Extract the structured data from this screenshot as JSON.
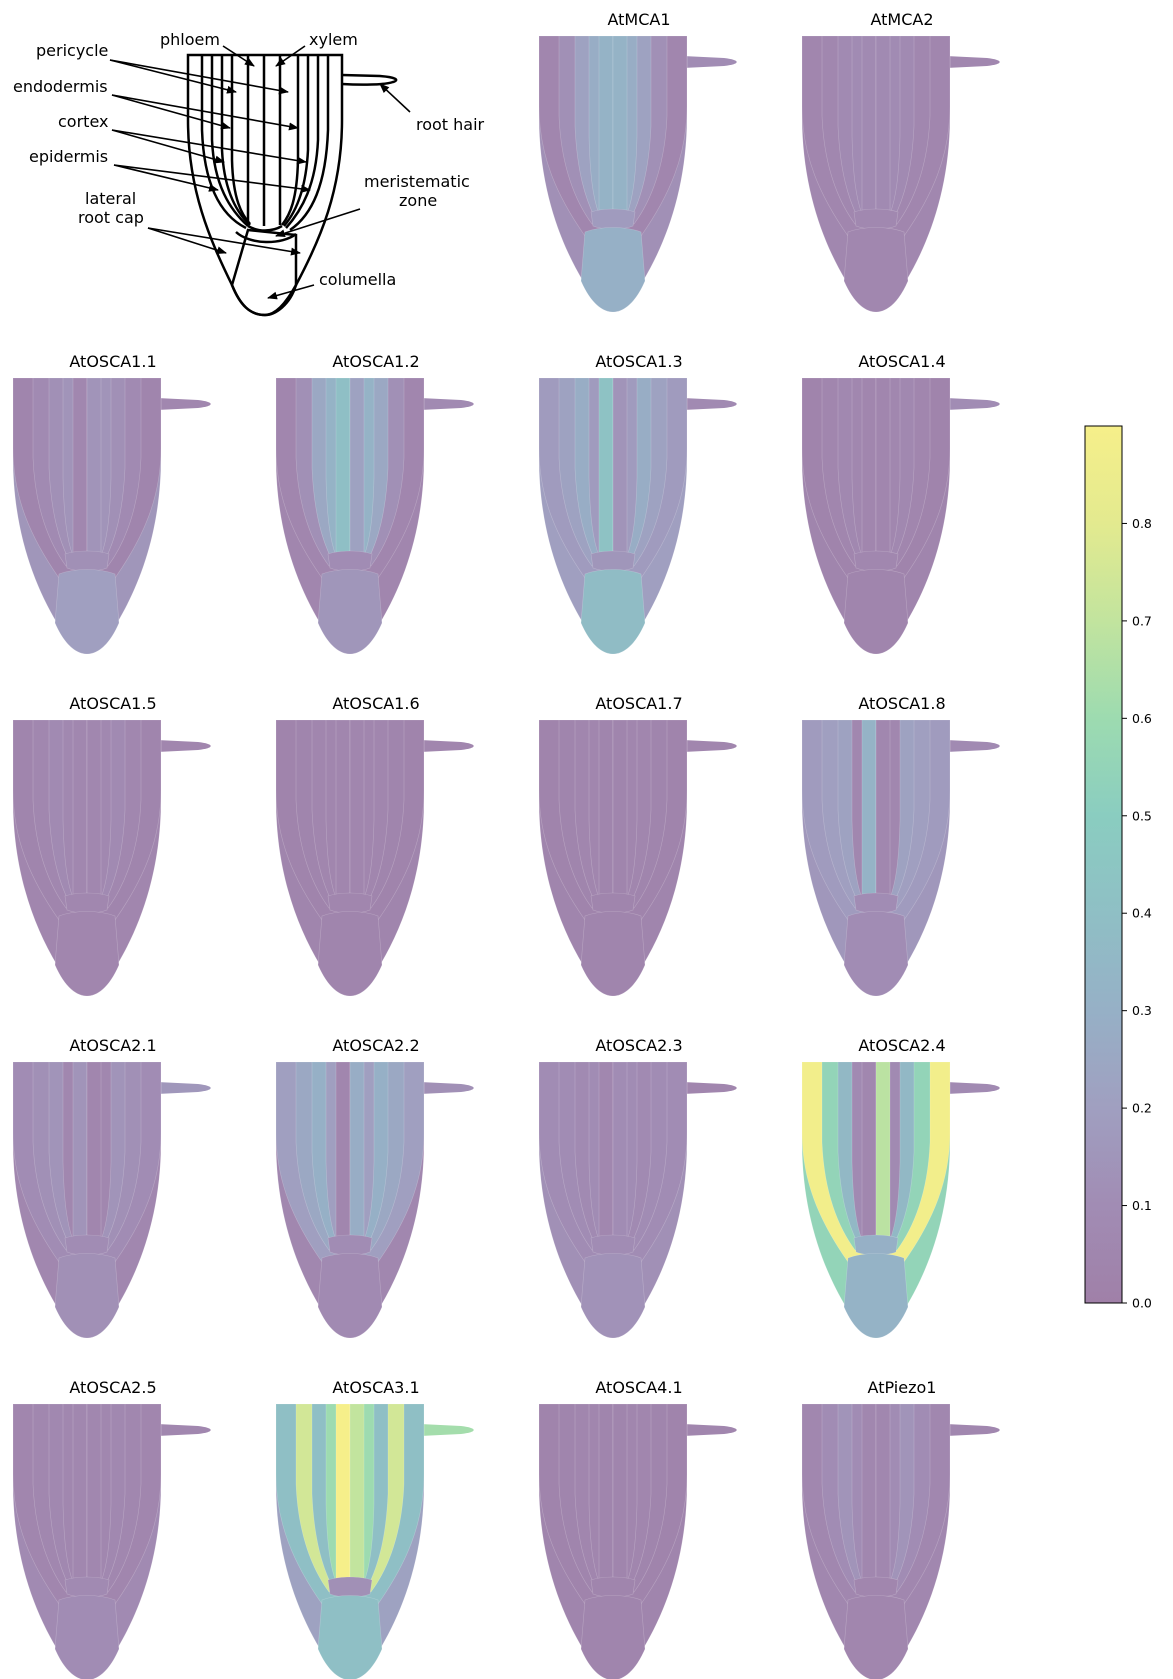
{
  "schematic": {
    "labels": {
      "pericycle": "pericycle",
      "endodermis": "endodermis",
      "cortex": "cortex",
      "epidermis": "epidermis",
      "lateral_root_cap_1": "lateral",
      "lateral_root_cap_2": "root cap",
      "phloem": "phloem",
      "xylem": "xylem",
      "root_hair": "root hair",
      "meristematic_1": "meristematic",
      "meristematic_2": "zone",
      "columella": "columella"
    }
  },
  "colorbar": {
    "ticks": [
      "0.0",
      "0.1",
      "0.2",
      "0.3",
      "0.4",
      "0.5",
      "0.6",
      "0.7",
      "0.8"
    ],
    "range": [
      0,
      0.9
    ],
    "colormap": "viridis",
    "alpha": 0.55
  },
  "tissues_order": [
    "epidermis",
    "cortex",
    "endodermis",
    "pericycle",
    "phloem",
    "xylem",
    "lateral_root_cap",
    "meristematic_zone",
    "columella",
    "root_hair"
  ],
  "panels": [
    {
      "title": "AtMCA1",
      "values": {
        "epidermis": 0.05,
        "cortex": 0.12,
        "endodermis": 0.22,
        "pericycle": 0.28,
        "phloem": 0.32,
        "xylem": 0.32,
        "lateral_root_cap": 0.12,
        "meristematic_zone": 0.18,
        "columella": 0.3,
        "root_hair": 0.1
      }
    },
    {
      "title": "AtMCA2",
      "values": {
        "epidermis": 0.05,
        "cortex": 0.06,
        "endodermis": 0.08,
        "pericycle": 0.09,
        "phloem": 0.08,
        "xylem": 0.08,
        "lateral_root_cap": 0.06,
        "meristematic_zone": 0.07,
        "columella": 0.06,
        "root_hair": 0.06
      }
    },
    {
      "title": "AtOSCA1.1",
      "values": {
        "epidermis": 0.04,
        "cortex": 0.08,
        "endodermis": 0.12,
        "pericycle": 0.14,
        "phloem": 0.06,
        "xylem": 0.14,
        "lateral_root_cap": 0.15,
        "meristematic_zone": 0.12,
        "columella": 0.2,
        "root_hair": 0.06
      }
    },
    {
      "title": "AtOSCA1.2",
      "values": {
        "epidermis": 0.05,
        "cortex": 0.12,
        "endodermis": 0.25,
        "pericycle": 0.32,
        "phloem": 0.4,
        "xylem": 0.22,
        "lateral_root_cap": 0.05,
        "meristematic_zone": 0.1,
        "columella": 0.15,
        "root_hair": 0.08
      }
    },
    {
      "title": "AtOSCA1.3",
      "values": {
        "epidermis": 0.18,
        "cortex": 0.22,
        "endodermis": 0.28,
        "pericycle": 0.18,
        "phloem": 0.42,
        "xylem": 0.14,
        "lateral_root_cap": 0.2,
        "meristematic_zone": 0.15,
        "columella": 0.38,
        "root_hair": 0.08
      }
    },
    {
      "title": "AtOSCA1.4",
      "values": {
        "epidermis": 0.03,
        "cortex": 0.05,
        "endodermis": 0.07,
        "pericycle": 0.06,
        "phloem": 0.05,
        "xylem": 0.05,
        "lateral_root_cap": 0.04,
        "meristematic_zone": 0.06,
        "columella": 0.04,
        "root_hair": 0.1
      }
    },
    {
      "title": "AtOSCA1.5",
      "values": {
        "epidermis": 0.04,
        "cortex": 0.06,
        "endodermis": 0.08,
        "pericycle": 0.07,
        "phloem": 0.06,
        "xylem": 0.06,
        "lateral_root_cap": 0.05,
        "meristematic_zone": 0.06,
        "columella": 0.05,
        "root_hair": 0.05
      }
    },
    {
      "title": "AtOSCA1.6",
      "values": {
        "epidermis": 0.03,
        "cortex": 0.04,
        "endodermis": 0.05,
        "pericycle": 0.05,
        "phloem": 0.05,
        "xylem": 0.05,
        "lateral_root_cap": 0.04,
        "meristematic_zone": 0.05,
        "columella": 0.04,
        "root_hair": 0.05
      }
    },
    {
      "title": "AtOSCA1.7",
      "values": {
        "epidermis": 0.03,
        "cortex": 0.04,
        "endodermis": 0.05,
        "pericycle": 0.05,
        "phloem": 0.04,
        "xylem": 0.04,
        "lateral_root_cap": 0.04,
        "meristematic_zone": 0.04,
        "columella": 0.04,
        "root_hair": 0.05
      }
    },
    {
      "title": "AtOSCA1.8",
      "values": {
        "epidermis": 0.18,
        "cortex": 0.2,
        "endodermis": 0.22,
        "pericycle": 0.06,
        "phloem": 0.32,
        "xylem": 0.06,
        "lateral_root_cap": 0.16,
        "meristematic_zone": 0.1,
        "columella": 0.1,
        "root_hair": 0.08
      }
    },
    {
      "title": "AtOSCA2.1",
      "values": {
        "epidermis": 0.1,
        "cortex": 0.12,
        "endodermis": 0.14,
        "pericycle": 0.06,
        "phloem": 0.14,
        "xylem": 0.05,
        "lateral_root_cap": 0.06,
        "meristematic_zone": 0.1,
        "columella": 0.12,
        "root_hair": 0.16
      }
    },
    {
      "title": "AtOSCA2.2",
      "values": {
        "epidermis": 0.2,
        "cortex": 0.25,
        "endodermis": 0.3,
        "pericycle": 0.2,
        "phloem": 0.05,
        "xylem": 0.28,
        "lateral_root_cap": 0.06,
        "meristematic_zone": 0.1,
        "columella": 0.08,
        "root_hair": 0.12
      }
    },
    {
      "title": "AtOSCA2.3",
      "values": {
        "epidermis": 0.1,
        "cortex": 0.1,
        "endodermis": 0.08,
        "pericycle": 0.1,
        "phloem": 0.06,
        "xylem": 0.1,
        "lateral_root_cap": 0.12,
        "meristematic_zone": 0.1,
        "columella": 0.13,
        "root_hair": 0.05
      }
    },
    {
      "title": "AtOSCA2.4",
      "values": {
        "epidermis": 0.88,
        "cortex": 0.55,
        "endodermis": 0.35,
        "pericycle": 0.08,
        "phloem": 0.06,
        "xylem": 0.68,
        "lateral_root_cap": 0.55,
        "meristematic_zone": 0.3,
        "columella": 0.32,
        "root_hair": 0.08
      }
    },
    {
      "title": "AtOSCA2.5",
      "values": {
        "epidermis": 0.05,
        "cortex": 0.06,
        "endodermis": 0.07,
        "pericycle": 0.06,
        "phloem": 0.06,
        "xylem": 0.06,
        "lateral_root_cap": 0.08,
        "meristematic_zone": 0.08,
        "columella": 0.1,
        "root_hair": 0.06
      }
    },
    {
      "title": "AtOSCA3.1",
      "values": {
        "epidermis": 0.4,
        "cortex": 0.75,
        "endodermis": 0.4,
        "pericycle": 0.6,
        "phloem": 0.9,
        "xylem": 0.7,
        "lateral_root_cap": 0.22,
        "meristematic_zone": 0.12,
        "columella": 0.4,
        "root_hair": 0.62
      }
    },
    {
      "title": "AtOSCA4.1",
      "values": {
        "epidermis": 0.03,
        "cortex": 0.04,
        "endodermis": 0.05,
        "pericycle": 0.05,
        "phloem": 0.04,
        "xylem": 0.04,
        "lateral_root_cap": 0.04,
        "meristematic_zone": 0.04,
        "columella": 0.04,
        "root_hair": 0.05
      }
    },
    {
      "title": "AtPiezo1",
      "values": {
        "epidermis": 0.06,
        "cortex": 0.1,
        "endodermis": 0.14,
        "pericycle": 0.1,
        "phloem": 0.06,
        "xylem": 0.06,
        "lateral_root_cap": 0.06,
        "meristematic_zone": 0.05,
        "columella": 0.05,
        "root_hair": 0.06
      }
    }
  ]
}
